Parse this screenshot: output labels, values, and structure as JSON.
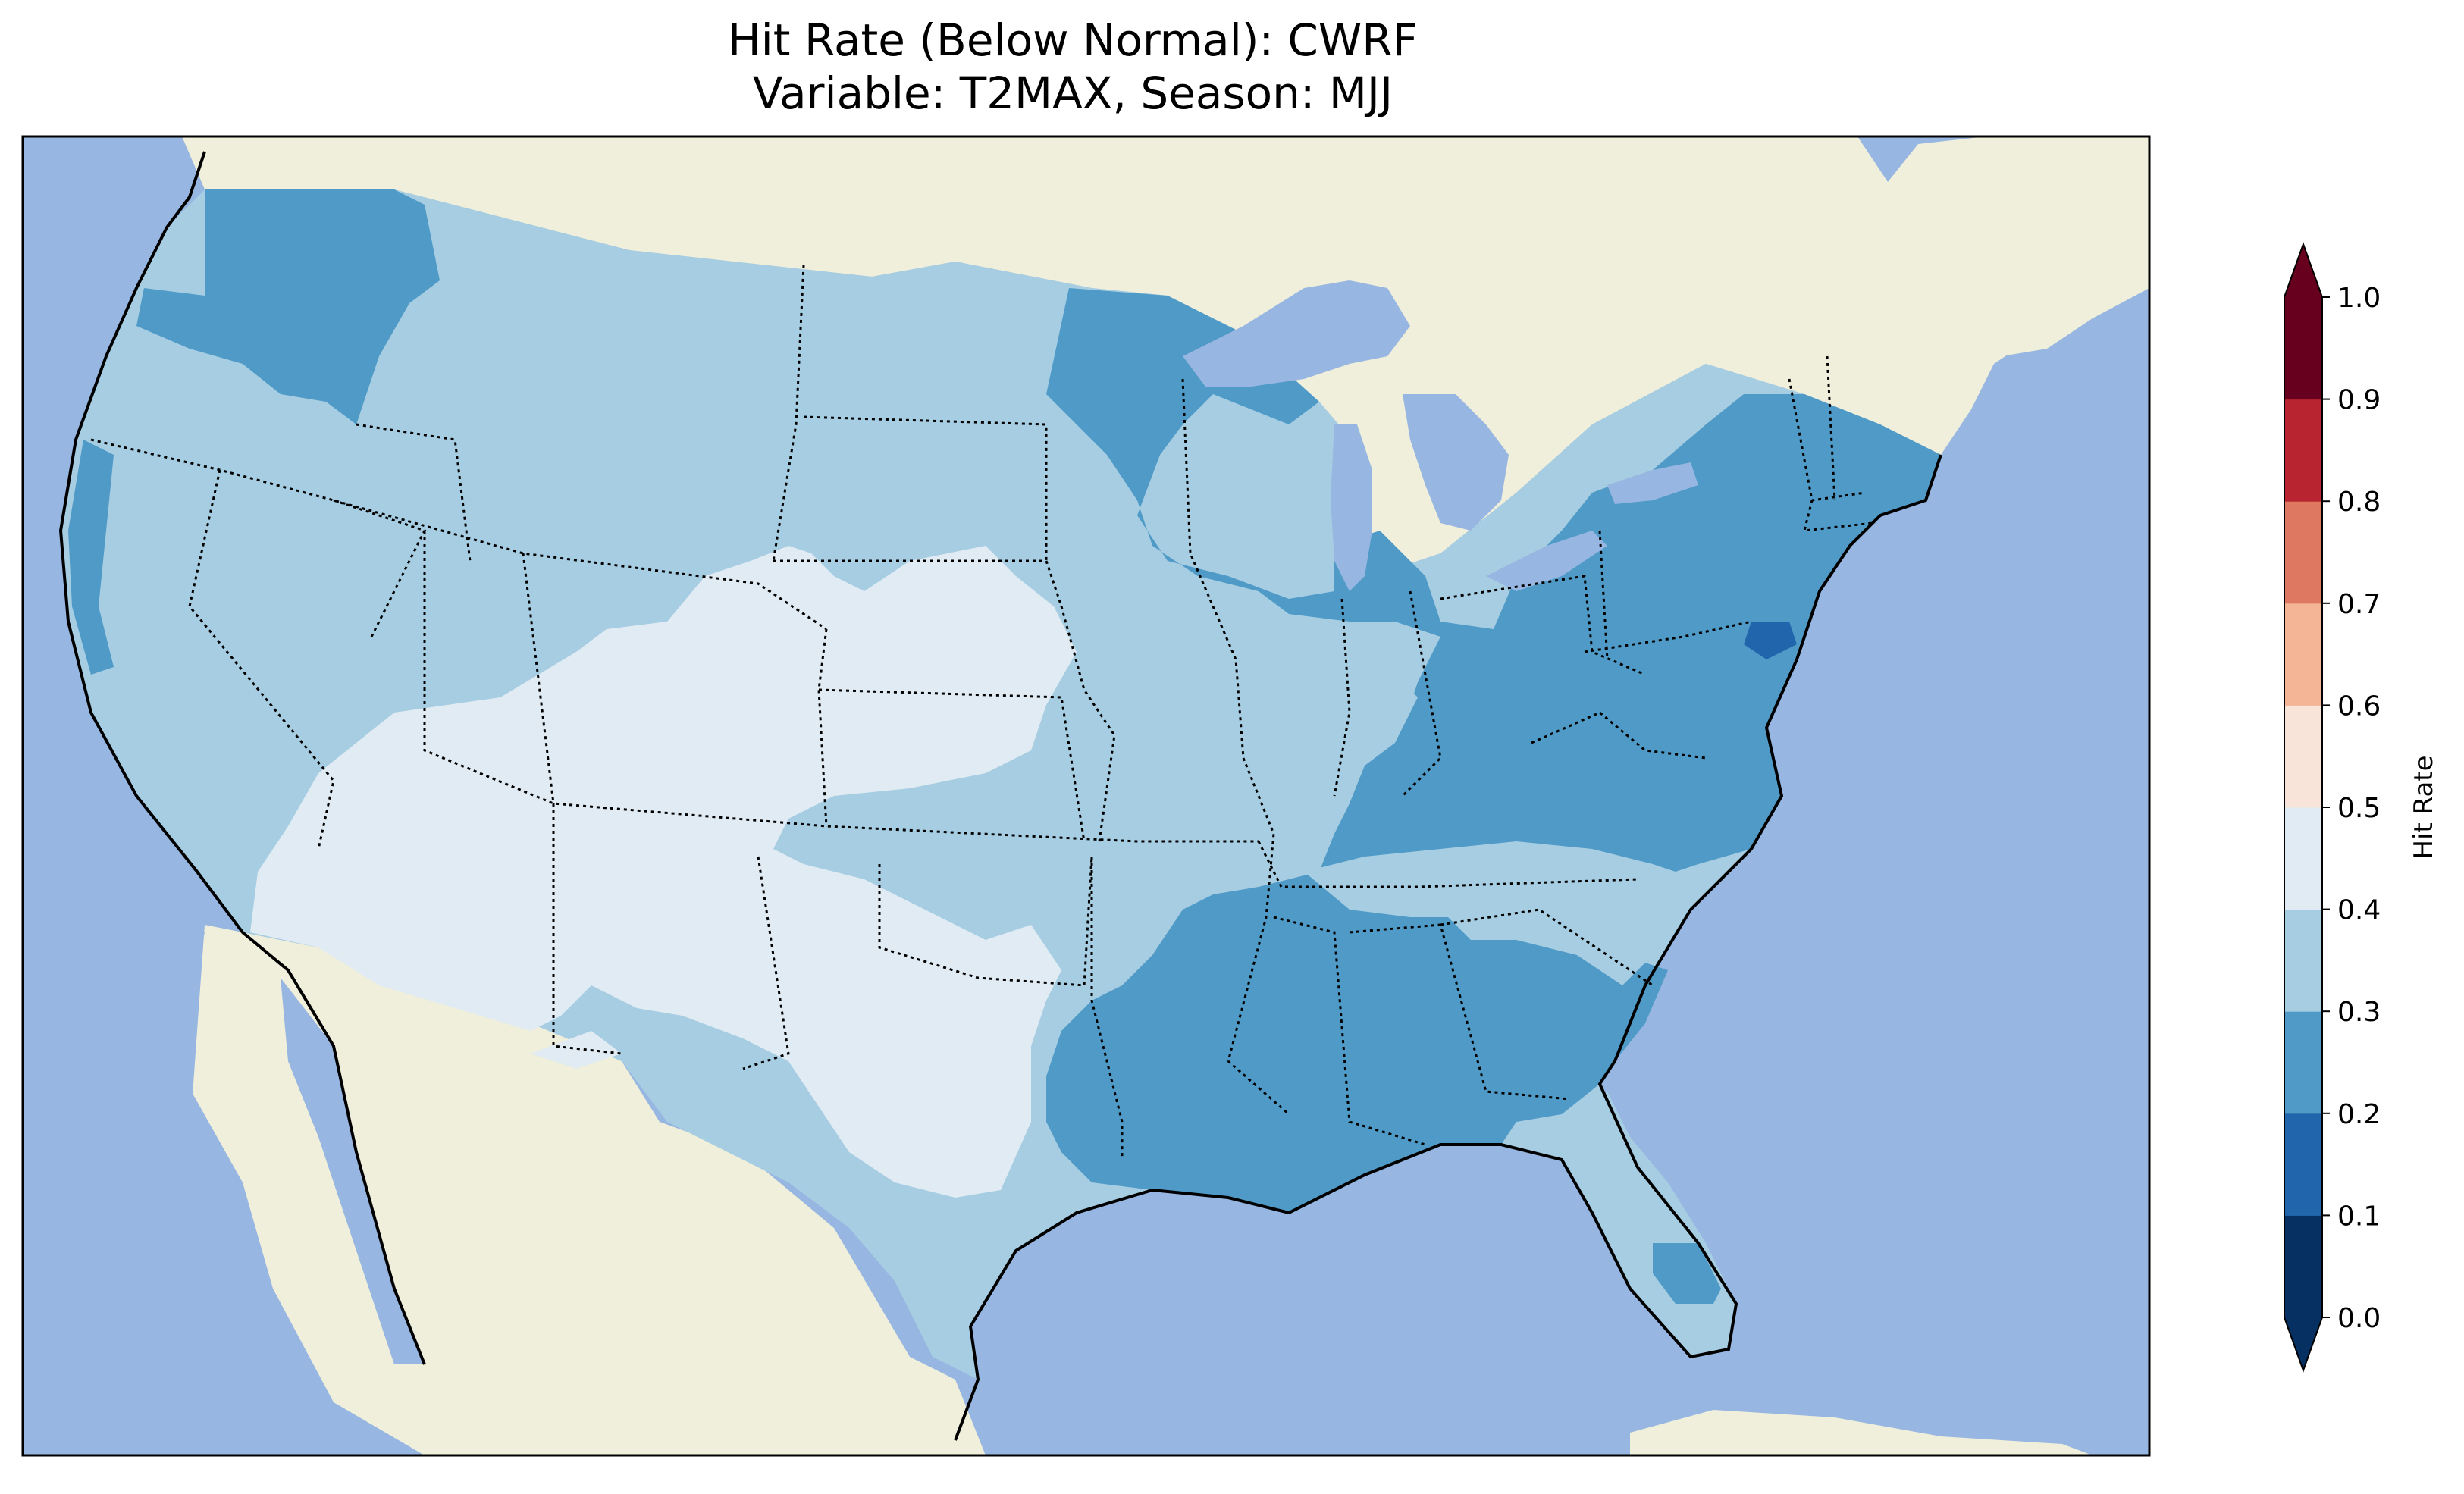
{
  "title": {
    "line1": "Hit Rate (Below Normal): CWRF",
    "line2": "Variable: T2MAX, Season: MJJ"
  },
  "colors": {
    "ocean": "#97b6e1",
    "land": "#efefdb",
    "lakes": "#97b6e1",
    "coastline": "#000000",
    "state_border": "#000000"
  },
  "colorbar": {
    "label": "Hit Rate",
    "ticks": [
      "0.0",
      "0.1",
      "0.2",
      "0.3",
      "0.4",
      "0.5",
      "0.6",
      "0.7",
      "0.8",
      "0.9",
      "1.0"
    ],
    "bins": [
      {
        "from": 0.0,
        "to": 0.1,
        "color": "#053061"
      },
      {
        "from": 0.1,
        "to": 0.2,
        "color": "#2166ac"
      },
      {
        "from": 0.2,
        "to": 0.3,
        "color": "#4f9ac7"
      },
      {
        "from": 0.3,
        "to": 0.4,
        "color": "#a6cde2"
      },
      {
        "from": 0.4,
        "to": 0.5,
        "color": "#e1ebf3"
      },
      {
        "from": 0.5,
        "to": 0.6,
        "color": "#f8e4d9"
      },
      {
        "from": 0.6,
        "to": 0.7,
        "color": "#f4b597"
      },
      {
        "from": 0.7,
        "to": 0.8,
        "color": "#df7861"
      },
      {
        "from": 0.8,
        "to": 0.9,
        "color": "#b82430"
      },
      {
        "from": 0.9,
        "to": 1.0,
        "color": "#67001f"
      }
    ],
    "extend": "both"
  },
  "regions": [
    {
      "name": "Pacific Northwest coast",
      "value_bin": "0.2-0.3"
    },
    {
      "name": "Western interior",
      "value_bin": "0.3-0.4"
    },
    {
      "name": "Southwest and Southern Plains",
      "value_bin": "0.4-0.5"
    },
    {
      "name": "Great Lakes, Northeast, Southeast",
      "value_bin": "0.2-0.3"
    },
    {
      "name": "Chesapeake Bay area",
      "value_bin": "0.1-0.2"
    },
    {
      "name": "Florida peninsula",
      "value_bin": "0.3-0.4"
    }
  ]
}
